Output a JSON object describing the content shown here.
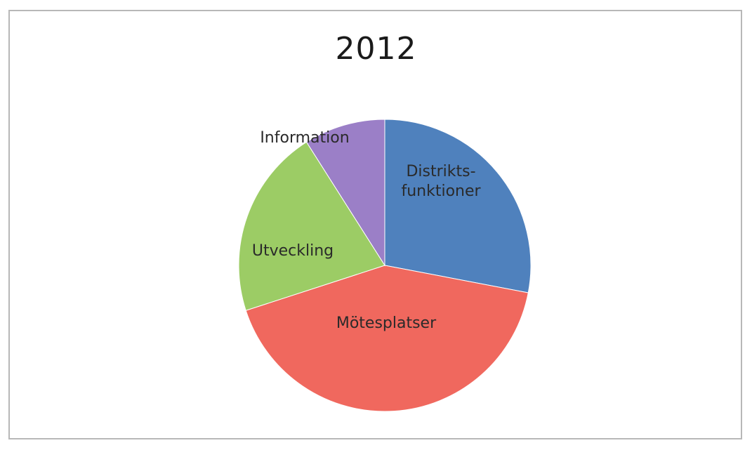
{
  "chart_data": {
    "type": "pie",
    "title": "2012",
    "start_angle_deg": -90,
    "direction": "clockwise",
    "slices": [
      {
        "label_lines": [
          "Distrikts-",
          "funktioner"
        ],
        "value": 28,
        "color": "#4f81bd"
      },
      {
        "label_lines": [
          "Mötesplatser"
        ],
        "value": 42,
        "color": "#f0685e"
      },
      {
        "label_lines": [
          "Utveckling"
        ],
        "value": 21,
        "color": "#9ccc65"
      },
      {
        "label_lines": [
          "Information"
        ],
        "value": 9,
        "color": "#9b7fc7"
      }
    ]
  }
}
